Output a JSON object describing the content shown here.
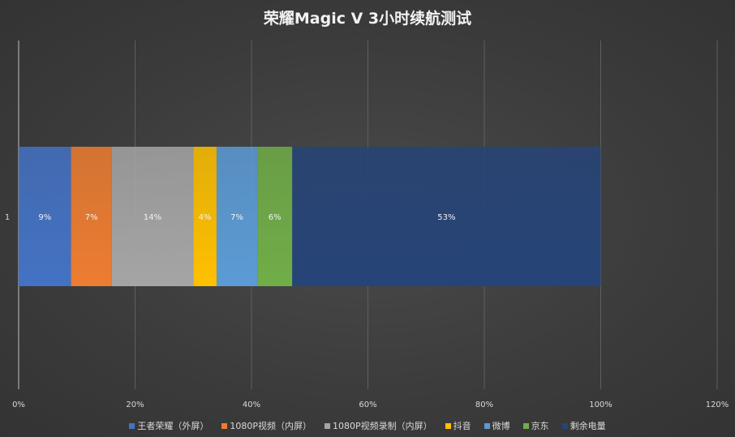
{
  "chart_data": {
    "type": "bar",
    "orientation": "horizontal",
    "stacked": true,
    "title": "荣耀Magic V 3小时续航测试",
    "categories": [
      "1"
    ],
    "series": [
      {
        "name": "王者荣耀（外屏）",
        "values": [
          9
        ],
        "label": "9%",
        "color": "#4472c4"
      },
      {
        "name": "1080P视频（内屏）",
        "values": [
          7
        ],
        "label": "7%",
        "color": "#ed7d31"
      },
      {
        "name": "1080P视频录制（内屏）",
        "values": [
          14
        ],
        "label": "14%",
        "color": "#a5a5a5"
      },
      {
        "name": "抖音",
        "values": [
          4
        ],
        "label": "4%",
        "color": "#ffc000"
      },
      {
        "name": "微博",
        "values": [
          7
        ],
        "label": "7%",
        "color": "#5b9bd5"
      },
      {
        "name": "京东",
        "values": [
          6
        ],
        "label": "6%",
        "color": "#70ad47"
      },
      {
        "name": "剩余电量",
        "values": [
          53
        ],
        "label": "53%",
        "color": "#264478"
      }
    ],
    "xlim": [
      0,
      120
    ],
    "xticks": [
      "0%",
      "20%",
      "40%",
      "60%",
      "80%",
      "100%",
      "120%"
    ],
    "grid": true,
    "legend_position": "bottom"
  }
}
